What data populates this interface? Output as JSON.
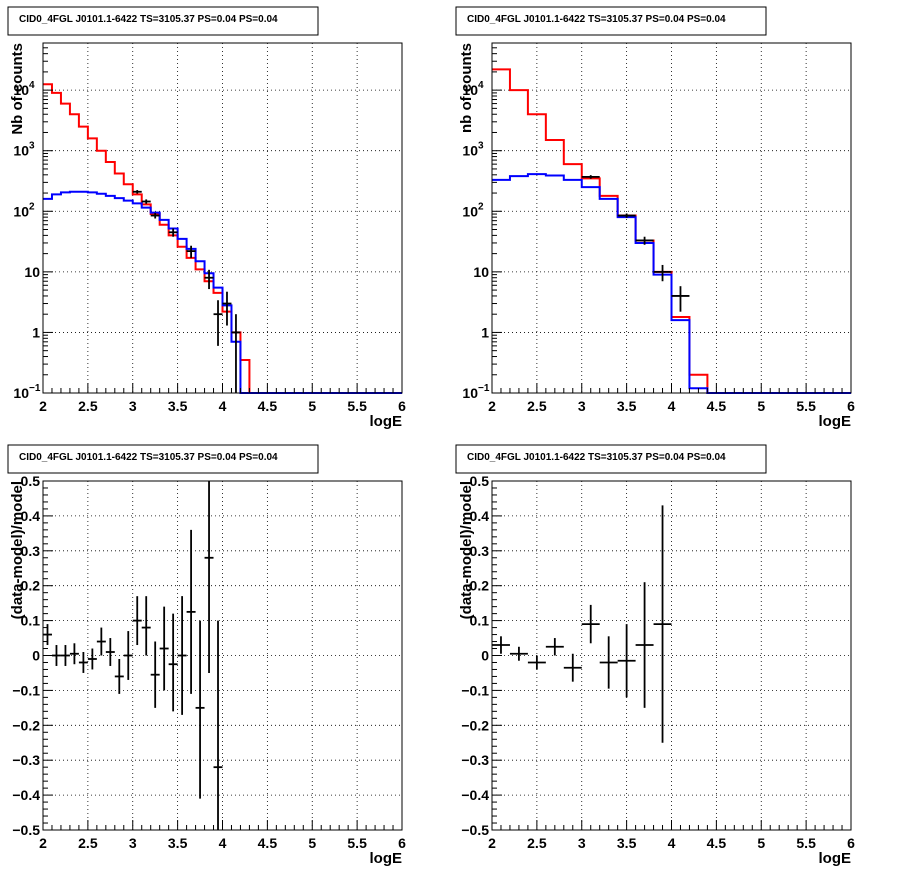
{
  "chart_data": [
    {
      "type": "line",
      "log_y": true,
      "title": "CID0_4FGL J0101.1-6422 TS=3105.37 PS=0.04 PS=0.04",
      "xlabel": "logE",
      "ylabel": "Nb of counts",
      "xlim": [
        2,
        6
      ],
      "ylim": [
        0.1,
        60000
      ],
      "x_ticks": [
        "2",
        "2.5",
        "3",
        "3.5",
        "4",
        "4.5",
        "5",
        "5.5",
        "6"
      ],
      "y_ticks": [
        {
          "value": 0.1,
          "base": "10",
          "exp": "−1"
        },
        {
          "value": 1,
          "label": "1"
        },
        {
          "value": 10,
          "label": "10"
        },
        {
          "value": 100,
          "base": "10",
          "exp": "2"
        },
        {
          "value": 1000,
          "base": "10",
          "exp": "3"
        },
        {
          "value": 10000,
          "base": "10",
          "exp": "4"
        }
      ],
      "grid": true,
      "bin_edges": [
        2.0,
        2.1,
        2.2,
        2.3,
        2.4,
        2.5,
        2.6,
        2.7,
        2.8,
        2.9,
        3.0,
        3.1,
        3.2,
        3.3,
        3.4,
        3.5,
        3.6,
        3.7,
        3.8,
        3.9,
        4.0,
        4.1,
        4.2,
        4.3,
        4.4,
        4.5,
        4.6,
        4.7,
        4.8,
        4.9,
        5.0,
        5.1,
        5.2,
        5.3,
        5.4,
        5.5,
        5.6,
        5.7,
        5.8,
        5.9,
        6.0
      ],
      "series": [
        {
          "color": "#ff0000",
          "values": [
            12500,
            9000,
            6000,
            4000,
            2500,
            1600,
            1000,
            650,
            420,
            280,
            190,
            130,
            90,
            60,
            40,
            26,
            17,
            11,
            7,
            4.5,
            2.2,
            1.0,
            0.35,
            0.1,
            0.1,
            0.1,
            0.1,
            0.1,
            0.1,
            0.1,
            0.1,
            0.1,
            0.1,
            0.1,
            0.1,
            0.1,
            0.1,
            0.1,
            0.1,
            0.1
          ]
        },
        {
          "color": "#0000ff",
          "values": [
            160,
            190,
            205,
            210,
            210,
            205,
            195,
            180,
            165,
            150,
            135,
            115,
            95,
            72,
            52,
            35,
            24,
            15,
            9.5,
            5.5,
            2.8,
            0.7,
            0.1,
            0.1,
            0.1,
            0.1,
            0.1,
            0.1,
            0.1,
            0.1,
            0.1,
            0.1,
            0.1,
            0.1,
            0.1,
            0.1,
            0.1,
            0.1,
            0.1,
            0.1
          ]
        }
      ],
      "points": [
        {
          "x": 3.05,
          "y": 210,
          "xerr": 0.05,
          "ylo": 196,
          "yhi": 224
        },
        {
          "x": 3.15,
          "y": 145,
          "xerr": 0.05,
          "ylo": 133,
          "yhi": 157
        },
        {
          "x": 3.25,
          "y": 85,
          "xerr": 0.05,
          "ylo": 76,
          "yhi": 94
        },
        {
          "x": 3.45,
          "y": 45,
          "xerr": 0.05,
          "ylo": 38,
          "yhi": 52
        },
        {
          "x": 3.65,
          "y": 22,
          "xerr": 0.05,
          "ylo": 17,
          "yhi": 27
        },
        {
          "x": 3.85,
          "y": 8,
          "xerr": 0.05,
          "ylo": 5.2,
          "yhi": 10.8
        },
        {
          "x": 3.95,
          "y": 2,
          "xerr": 0.05,
          "ylo": 0.6,
          "yhi": 3.4
        },
        {
          "x": 4.05,
          "y": 3,
          "xerr": 0.05,
          "ylo": 1.3,
          "yhi": 4.7
        },
        {
          "x": 4.15,
          "y": 1,
          "xerr": 0.05,
          "ylo": 0.1,
          "yhi": 2.0
        }
      ]
    },
    {
      "type": "line",
      "log_y": true,
      "title": "CID0_4FGL J0101.1-6422 TS=3105.37 PS=0.04 PS=0.04",
      "xlabel": "logE",
      "ylabel": "nb of counts",
      "xlim": [
        2,
        6
      ],
      "ylim": [
        0.1,
        60000
      ],
      "x_ticks": [
        "2",
        "2.5",
        "3",
        "3.5",
        "4",
        "4.5",
        "5",
        "5.5",
        "6"
      ],
      "y_ticks": [
        {
          "value": 0.1,
          "base": "10",
          "exp": "−1"
        },
        {
          "value": 1,
          "label": "1"
        },
        {
          "value": 10,
          "label": "10"
        },
        {
          "value": 100,
          "base": "10",
          "exp": "2"
        },
        {
          "value": 1000,
          "base": "10",
          "exp": "3"
        },
        {
          "value": 10000,
          "base": "10",
          "exp": "4"
        }
      ],
      "grid": true,
      "bin_edges": [
        2.0,
        2.2,
        2.4,
        2.6,
        2.8,
        3.0,
        3.2,
        3.4,
        3.6,
        3.8,
        4.0,
        4.2,
        4.4,
        4.6,
        4.8,
        5.0,
        5.2,
        5.4,
        5.6,
        5.8,
        6.0
      ],
      "series": [
        {
          "color": "#ff0000",
          "values": [
            22000,
            10000,
            4000,
            1500,
            600,
            350,
            180,
            85,
            33,
            10,
            1.8,
            0.2,
            0.1,
            0.1,
            0.1,
            0.1,
            0.1,
            0.1,
            0.1,
            0.1
          ]
        },
        {
          "color": "#0000ff",
          "values": [
            330,
            380,
            410,
            390,
            330,
            250,
            160,
            80,
            30,
            9,
            1.6,
            0.12,
            0.1,
            0.1,
            0.1,
            0.1,
            0.1,
            0.1,
            0.1,
            0.1
          ]
        }
      ],
      "points": [
        {
          "x": 3.1,
          "y": 370,
          "xerr": 0.1,
          "ylo": 345,
          "yhi": 395
        },
        {
          "x": 3.5,
          "y": 85,
          "xerr": 0.1,
          "ylo": 78,
          "yhi": 92
        },
        {
          "x": 3.7,
          "y": 33,
          "xerr": 0.1,
          "ylo": 28,
          "yhi": 38
        },
        {
          "x": 3.9,
          "y": 10,
          "xerr": 0.1,
          "ylo": 7,
          "yhi": 13
        },
        {
          "x": 4.1,
          "y": 4,
          "xerr": 0.1,
          "ylo": 2.2,
          "yhi": 5.8
        }
      ]
    },
    {
      "type": "scatter",
      "log_y": false,
      "title": "CID0_4FGL J0101.1-6422 TS=3105.37 PS=0.04 PS=0.04",
      "xlabel": "logE",
      "ylabel": "(data-model)/model",
      "xlim": [
        2,
        6
      ],
      "ylim": [
        -0.5,
        0.5
      ],
      "x_ticks": [
        "2",
        "2.5",
        "3",
        "3.5",
        "4",
        "4.5",
        "5",
        "5.5",
        "6"
      ],
      "y_ticks": [
        {
          "value": -0.5,
          "label": "−0.5"
        },
        {
          "value": -0.4,
          "label": "−0.4"
        },
        {
          "value": -0.3,
          "label": "−0.3"
        },
        {
          "value": -0.2,
          "label": "−0.2"
        },
        {
          "value": -0.1,
          "label": "−0.1"
        },
        {
          "value": 0,
          "label": "0"
        },
        {
          "value": 0.1,
          "label": "0.1"
        },
        {
          "value": 0.2,
          "label": "0.2"
        },
        {
          "value": 0.3,
          "label": "0.3"
        },
        {
          "value": 0.4,
          "label": "0.4"
        },
        {
          "value": 0.5,
          "label": "0.5"
        }
      ],
      "grid": true,
      "points": [
        {
          "x": 2.05,
          "y": 0.06,
          "xerr": 0.05,
          "ylo": 0.03,
          "yhi": 0.09
        },
        {
          "x": 2.15,
          "y": 0.0,
          "xerr": 0.05,
          "ylo": -0.03,
          "yhi": 0.03
        },
        {
          "x": 2.25,
          "y": 0.0,
          "xerr": 0.05,
          "ylo": -0.03,
          "yhi": 0.03
        },
        {
          "x": 2.35,
          "y": 0.005,
          "xerr": 0.05,
          "ylo": -0.025,
          "yhi": 0.035
        },
        {
          "x": 2.45,
          "y": -0.02,
          "xerr": 0.05,
          "ylo": -0.05,
          "yhi": 0.01
        },
        {
          "x": 2.55,
          "y": -0.01,
          "xerr": 0.05,
          "ylo": -0.04,
          "yhi": 0.02
        },
        {
          "x": 2.65,
          "y": 0.04,
          "xerr": 0.05,
          "ylo": 0.0,
          "yhi": 0.08
        },
        {
          "x": 2.75,
          "y": 0.01,
          "xerr": 0.05,
          "ylo": -0.03,
          "yhi": 0.05
        },
        {
          "x": 2.85,
          "y": -0.06,
          "xerr": 0.05,
          "ylo": -0.11,
          "yhi": -0.01
        },
        {
          "x": 2.95,
          "y": 0.0,
          "xerr": 0.05,
          "ylo": -0.07,
          "yhi": 0.07
        },
        {
          "x": 3.05,
          "y": 0.1,
          "xerr": 0.05,
          "ylo": 0.03,
          "yhi": 0.17
        },
        {
          "x": 3.15,
          "y": 0.08,
          "xerr": 0.05,
          "ylo": 0.0,
          "yhi": 0.17
        },
        {
          "x": 3.25,
          "y": -0.055,
          "xerr": 0.05,
          "ylo": -0.15,
          "yhi": 0.04
        },
        {
          "x": 3.35,
          "y": 0.02,
          "xerr": 0.05,
          "ylo": -0.1,
          "yhi": 0.14
        },
        {
          "x": 3.45,
          "y": -0.025,
          "xerr": 0.05,
          "ylo": -0.16,
          "yhi": 0.12
        },
        {
          "x": 3.55,
          "y": 0.0,
          "xerr": 0.05,
          "ylo": -0.17,
          "yhi": 0.17
        },
        {
          "x": 3.65,
          "y": 0.125,
          "xerr": 0.05,
          "ylo": -0.11,
          "yhi": 0.36
        },
        {
          "x": 3.75,
          "y": -0.15,
          "xerr": 0.05,
          "ylo": -0.41,
          "yhi": 0.1
        },
        {
          "x": 3.85,
          "y": 0.28,
          "xerr": 0.05,
          "ylo": -0.05,
          "yhi": 0.5
        },
        {
          "x": 3.95,
          "y": -0.32,
          "xerr": 0.05,
          "ylo": -0.5,
          "yhi": 0.1
        }
      ]
    },
    {
      "type": "scatter",
      "log_y": false,
      "title": "CID0_4FGL J0101.1-6422 TS=3105.37 PS=0.04 PS=0.04",
      "xlabel": "logE",
      "ylabel": "(data-model)/model",
      "xlim": [
        2,
        6
      ],
      "ylim": [
        -0.5,
        0.5
      ],
      "x_ticks": [
        "2",
        "2.5",
        "3",
        "3.5",
        "4",
        "4.5",
        "5",
        "5.5",
        "6"
      ],
      "y_ticks": [
        {
          "value": -0.5,
          "label": "−0.5"
        },
        {
          "value": -0.4,
          "label": "−0.4"
        },
        {
          "value": -0.3,
          "label": "−0.3"
        },
        {
          "value": -0.2,
          "label": "−0.2"
        },
        {
          "value": -0.1,
          "label": "−0.1"
        },
        {
          "value": 0,
          "label": "0"
        },
        {
          "value": 0.1,
          "label": "0.1"
        },
        {
          "value": 0.2,
          "label": "0.2"
        },
        {
          "value": 0.3,
          "label": "0.3"
        },
        {
          "value": 0.4,
          "label": "0.4"
        },
        {
          "value": 0.5,
          "label": "0.5"
        }
      ],
      "grid": true,
      "points": [
        {
          "x": 2.1,
          "y": 0.03,
          "xerr": 0.1,
          "ylo": 0.005,
          "yhi": 0.055
        },
        {
          "x": 2.3,
          "y": 0.005,
          "xerr": 0.1,
          "ylo": -0.015,
          "yhi": 0.025
        },
        {
          "x": 2.5,
          "y": -0.02,
          "xerr": 0.1,
          "ylo": -0.04,
          "yhi": 0.0
        },
        {
          "x": 2.7,
          "y": 0.025,
          "xerr": 0.1,
          "ylo": 0.0,
          "yhi": 0.05
        },
        {
          "x": 2.9,
          "y": -0.035,
          "xerr": 0.1,
          "ylo": -0.075,
          "yhi": 0.005
        },
        {
          "x": 3.1,
          "y": 0.09,
          "xerr": 0.1,
          "ylo": 0.035,
          "yhi": 0.145
        },
        {
          "x": 3.3,
          "y": -0.02,
          "xerr": 0.1,
          "ylo": -0.095,
          "yhi": 0.055
        },
        {
          "x": 3.5,
          "y": -0.015,
          "xerr": 0.1,
          "ylo": -0.12,
          "yhi": 0.09
        },
        {
          "x": 3.7,
          "y": 0.03,
          "xerr": 0.1,
          "ylo": -0.15,
          "yhi": 0.21
        },
        {
          "x": 3.9,
          "y": 0.09,
          "xerr": 0.1,
          "ylo": -0.25,
          "yhi": 0.43
        }
      ]
    }
  ]
}
